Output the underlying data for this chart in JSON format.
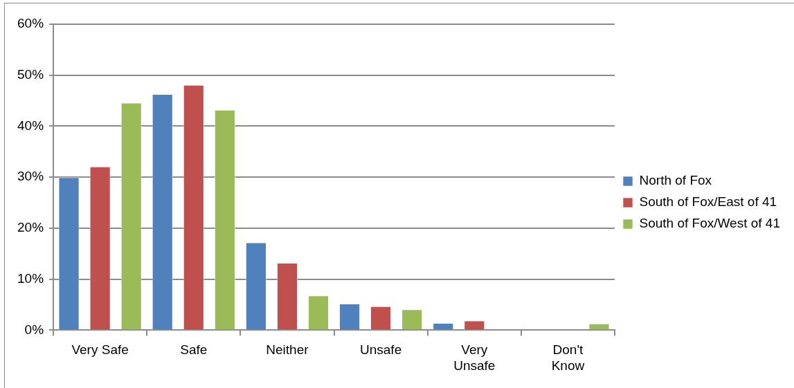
{
  "chart_data": {
    "type": "bar",
    "categories": [
      "Very Safe",
      "Safe",
      "Neither",
      "Unsafe",
      "Very Unsafe",
      "Don't Know"
    ],
    "series": [
      {
        "name": "North of Fox",
        "color": "#4f81bd",
        "values": [
          30,
          46.3,
          17.2,
          5.2,
          1.4,
          0
        ]
      },
      {
        "name": "South of Fox/East of 41",
        "color": "#c0504d",
        "values": [
          32.1,
          48.1,
          13.2,
          4.7,
          1.9,
          0
        ]
      },
      {
        "name": "South of Fox/West of 41",
        "color": "#9bbb59",
        "values": [
          44.6,
          43.2,
          6.8,
          4.1,
          0,
          1.3
        ]
      }
    ],
    "ylim": [
      0,
      60
    ],
    "yticks": [
      {
        "value": 0,
        "label": "0%"
      },
      {
        "value": 10,
        "label": "10%"
      },
      {
        "value": 20,
        "label": "20%"
      },
      {
        "value": 30,
        "label": "30%"
      },
      {
        "value": 40,
        "label": "40%"
      },
      {
        "value": 50,
        "label": "50%"
      },
      {
        "value": 60,
        "label": "60%"
      }
    ],
    "grid": "y",
    "legend": "right"
  }
}
